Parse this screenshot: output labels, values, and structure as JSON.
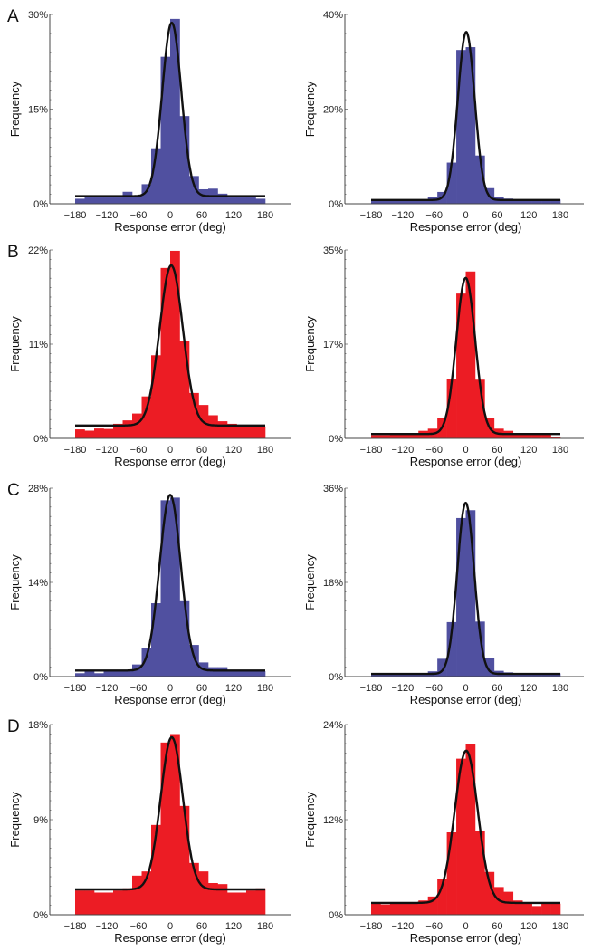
{
  "figure": {
    "xlabel": "Response error (deg)",
    "ylabel": "Frequency",
    "xticks": [
      "−180",
      "−120",
      "−60",
      "0",
      "60",
      "120",
      "180"
    ],
    "colors": {
      "blue": "#5050a0",
      "red": "#ec1c24",
      "fit": "#111111"
    }
  },
  "chart_data": [
    {
      "type": "bar",
      "panel": "A",
      "column": "left",
      "color": "blue",
      "bin_edges_start": -180,
      "bin_width": 18,
      "xlim": [
        -180,
        180
      ],
      "ylim": [
        0,
        30
      ],
      "ytick_labels": [
        "0%",
        "15%",
        "30%"
      ],
      "values": [
        0.8,
        1.0,
        1.0,
        1.0,
        1.0,
        1.9,
        1.3,
        3.1,
        8.8,
        23.3,
        29.3,
        13.9,
        4.4,
        2.3,
        2.4,
        1.6,
        1.0,
        1.0,
        1.0,
        0.8
      ],
      "fit": {
        "baseline": 1.2,
        "peak": 28.7,
        "center": 3,
        "sd": 18
      }
    },
    {
      "type": "bar",
      "panel": "",
      "column": "right",
      "color": "blue",
      "bin_edges_start": -180,
      "bin_width": 18,
      "xlim": [
        -180,
        180
      ],
      "ylim": [
        0,
        40
      ],
      "ytick_labels": [
        "0%",
        "20%",
        "40%"
      ],
      "values": [
        0.9,
        0.9,
        0.9,
        0.9,
        0.9,
        0.9,
        1.5,
        2.5,
        8.7,
        32.5,
        33.1,
        10.2,
        3.3,
        1.5,
        1.1,
        0.9,
        0.9,
        0.9,
        0.9,
        0.9
      ],
      "fit": {
        "baseline": 0.8,
        "peak": 36.3,
        "center": 1,
        "sd": 16
      }
    },
    {
      "type": "bar",
      "panel": "B",
      "column": "left",
      "color": "red",
      "bin_edges_start": -180,
      "bin_width": 18,
      "xlim": [
        -180,
        180
      ],
      "ylim": [
        0,
        22
      ],
      "ytick_labels": [
        "0%",
        "11%",
        "22%"
      ],
      "values": [
        1.05,
        0.9,
        1.15,
        1.1,
        1.7,
        2.1,
        2.9,
        4.9,
        9.7,
        19.9,
        21.9,
        11.4,
        5.3,
        3.9,
        2.7,
        2.0,
        1.7,
        1.4,
        1.4,
        1.4
      ],
      "fit": {
        "baseline": 1.5,
        "peak": 20.2,
        "center": 2,
        "sd": 22
      }
    },
    {
      "type": "bar",
      "panel": "",
      "column": "right",
      "color": "red",
      "bin_edges_start": -180,
      "bin_width": 18,
      "xlim": [
        -180,
        180
      ],
      "ylim": [
        0,
        35
      ],
      "ytick_labels": [
        "0%",
        "17%",
        "35%"
      ],
      "values": [
        0.6,
        0.6,
        0.7,
        0.7,
        0.9,
        1.4,
        1.8,
        3.8,
        11.0,
        26.9,
        31.0,
        10.9,
        3.7,
        1.8,
        1.4,
        0.8,
        0.7,
        0.7,
        0.7,
        0.2
      ],
      "fit": {
        "baseline": 0.8,
        "peak": 29.8,
        "center": 0,
        "sd": 18
      }
    },
    {
      "type": "bar",
      "panel": "C",
      "column": "left",
      "color": "blue",
      "bin_edges_start": -180,
      "bin_width": 18,
      "xlim": [
        -180,
        180
      ],
      "ylim": [
        0,
        28
      ],
      "ytick_labels": [
        "0%",
        "14%",
        "28%"
      ],
      "values": [
        0.5,
        0.8,
        0.5,
        0.8,
        0.85,
        1.0,
        1.8,
        4.2,
        10.9,
        26.2,
        26.6,
        11.2,
        4.7,
        2.1,
        1.4,
        1.4,
        0.8,
        0.8,
        0.8,
        0.8
      ],
      "fit": {
        "baseline": 0.9,
        "peak": 27.0,
        "center": 0,
        "sd": 20
      }
    },
    {
      "type": "bar",
      "panel": "",
      "column": "right",
      "color": "blue",
      "bin_edges_start": -180,
      "bin_width": 18,
      "xlim": [
        -180,
        180
      ],
      "ylim": [
        0,
        36
      ],
      "ytick_labels": [
        "0%",
        "18%",
        "36%"
      ],
      "values": [
        0.6,
        0.6,
        0.6,
        0.6,
        0.6,
        0.6,
        1.0,
        3.4,
        10.4,
        30.3,
        31.8,
        10.5,
        3.5,
        1.1,
        0.8,
        0.6,
        0.6,
        0.6,
        0.6,
        0.6
      ],
      "fit": {
        "baseline": 0.5,
        "peak": 33.2,
        "center": 0,
        "sd": 16
      }
    },
    {
      "type": "bar",
      "panel": "D",
      "column": "left",
      "color": "red",
      "bin_edges_start": -180,
      "bin_width": 18,
      "xlim": [
        -180,
        180
      ],
      "ylim": [
        0,
        18
      ],
      "ytick_labels": [
        "0%",
        "9%",
        "18%"
      ],
      "values": [
        2.3,
        2.3,
        2.1,
        2.1,
        2.3,
        2.5,
        3.7,
        4.1,
        8.5,
        16.3,
        17.1,
        10.3,
        4.9,
        4.1,
        3.0,
        2.9,
        2.1,
        2.1,
        2.3,
        2.5
      ],
      "fit": {
        "baseline": 2.4,
        "peak": 16.8,
        "center": 3,
        "sd": 21
      }
    },
    {
      "type": "bar",
      "panel": "",
      "column": "right",
      "color": "red",
      "bin_edges_start": -180,
      "bin_width": 18,
      "xlim": [
        -180,
        180
      ],
      "ylim": [
        0,
        24
      ],
      "ytick_labels": [
        "0%",
        "12%",
        "24%"
      ],
      "values": [
        1.6,
        1.3,
        1.4,
        1.5,
        1.5,
        1.8,
        2.3,
        4.5,
        10.4,
        19.7,
        21.6,
        10.6,
        5.4,
        3.5,
        2.9,
        1.8,
        1.5,
        1.1,
        1.5,
        1.4
      ],
      "fit": {
        "baseline": 1.5,
        "peak": 20.7,
        "center": 1,
        "sd": 22
      }
    }
  ]
}
